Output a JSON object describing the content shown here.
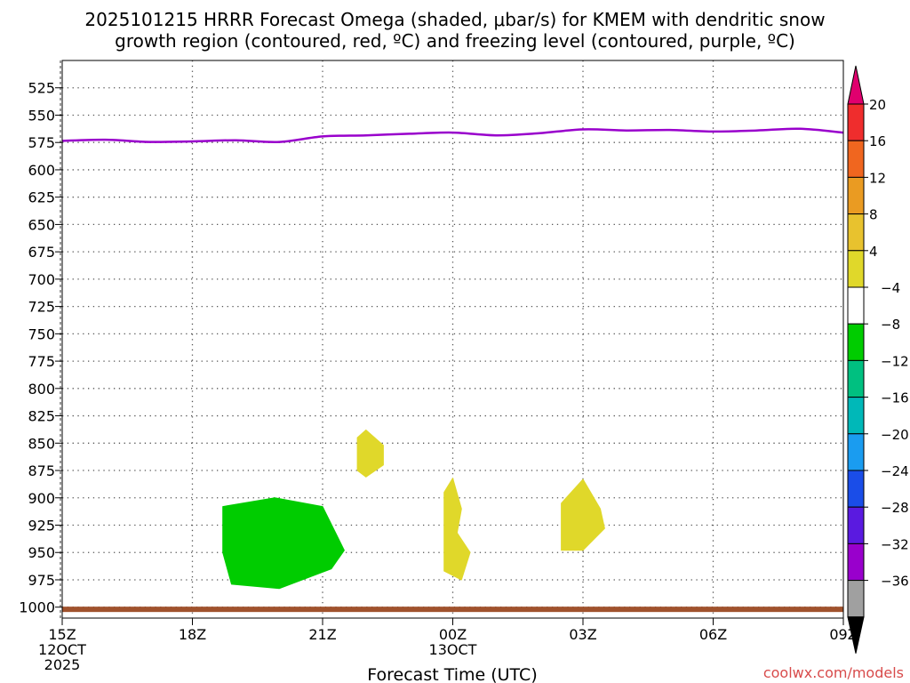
{
  "chart_data": {
    "type": "time-height cross section",
    "title_lines": [
      "2025101215 HRRR Forecast Omega (shaded, μbar/s) for KMEM with dendritic snow",
      "growth region (contoured, red, ºC) and freezing level (contoured, purple, ºC)"
    ],
    "xlabel": "Forecast Time (UTC)",
    "credit": "coolwx.com/models",
    "x_range_hours": [
      0,
      18
    ],
    "x_ticks": [
      {
        "hour": 0,
        "lines": [
          "15Z",
          "12OCT",
          "2025"
        ]
      },
      {
        "hour": 3,
        "lines": [
          "18Z"
        ]
      },
      {
        "hour": 6,
        "lines": [
          "21Z"
        ]
      },
      {
        "hour": 9,
        "lines": [
          "00Z",
          "13OCT"
        ]
      },
      {
        "hour": 12,
        "lines": [
          "03Z"
        ]
      },
      {
        "hour": 15,
        "lines": [
          "06Z"
        ]
      },
      {
        "hour": 18,
        "lines": [
          "09Z"
        ]
      }
    ],
    "y_range_hpa": [
      500,
      1010
    ],
    "y_ticks": [
      525,
      550,
      575,
      600,
      625,
      650,
      675,
      700,
      725,
      750,
      775,
      800,
      825,
      850,
      875,
      900,
      925,
      950,
      975,
      1000
    ],
    "freezing_level": {
      "color": "#9900cc",
      "hours": [
        0,
        1,
        2,
        3,
        4,
        5,
        6,
        7,
        8,
        9,
        10,
        11,
        12,
        13,
        14,
        15,
        16,
        17,
        18
      ],
      "pressure_hpa": [
        573.5,
        572.5,
        574.5,
        574,
        573,
        574.5,
        569.5,
        568.5,
        567,
        566,
        568.5,
        566.5,
        563,
        564,
        563.5,
        565,
        564,
        562.5,
        566
      ]
    },
    "surface_band": {
      "color": "#a0522d",
      "pressure_hpa": 1002
    },
    "omega_regions": [
      {
        "name": "green region",
        "value_range": [
          -8,
          -4
        ],
        "color": "#00cc00",
        "points": [
          [
            3.7,
            908
          ],
          [
            4.9,
            900
          ],
          [
            6.0,
            908
          ],
          [
            6.5,
            948
          ],
          [
            6.2,
            965
          ],
          [
            5.0,
            983
          ],
          [
            3.9,
            979
          ],
          [
            3.7,
            950
          ]
        ]
      },
      {
        "name": "yellow region near 850 hPa",
        "value_range": [
          4,
          8
        ],
        "color": "#e0d82a",
        "points": [
          [
            7.0,
            838
          ],
          [
            7.4,
            852
          ],
          [
            7.4,
            870
          ],
          [
            7.0,
            881
          ],
          [
            6.8,
            875
          ],
          [
            6.8,
            845
          ]
        ]
      },
      {
        "name": "yellow region near 00Z",
        "value_range": [
          4,
          8
        ],
        "color": "#e0d82a",
        "points": [
          [
            9.0,
            882
          ],
          [
            9.2,
            910
          ],
          [
            9.1,
            932
          ],
          [
            9.4,
            950
          ],
          [
            9.2,
            975
          ],
          [
            8.8,
            967
          ],
          [
            8.8,
            935
          ],
          [
            8.8,
            895
          ]
        ]
      },
      {
        "name": "yellow region near 03Z",
        "value_range": [
          4,
          8
        ],
        "color": "#e0d82a",
        "points": [
          [
            12.0,
            883
          ],
          [
            12.4,
            910
          ],
          [
            12.5,
            928
          ],
          [
            12.0,
            948
          ],
          [
            11.5,
            948
          ],
          [
            11.5,
            905
          ]
        ]
      }
    ],
    "colorbar": {
      "labels": [
        "20",
        "16",
        "12",
        "8",
        "4",
        "-4",
        "-8",
        "-12",
        "-16",
        "-20",
        "-24",
        "-28",
        "-32",
        "-36"
      ],
      "top_arrow": "#e0006e",
      "segments": [
        "#ef2d2d",
        "#f0661f",
        "#ea9b22",
        "#e8c22e",
        "#e0d82a",
        "#ffffff",
        "#00cc00",
        "#00c080",
        "#00b8b8",
        "#1a9cf0",
        "#1a4de8",
        "#5a1ae0",
        "#9900cc",
        "#a0a0a0"
      ],
      "bottom_arrow": "#000000"
    }
  }
}
